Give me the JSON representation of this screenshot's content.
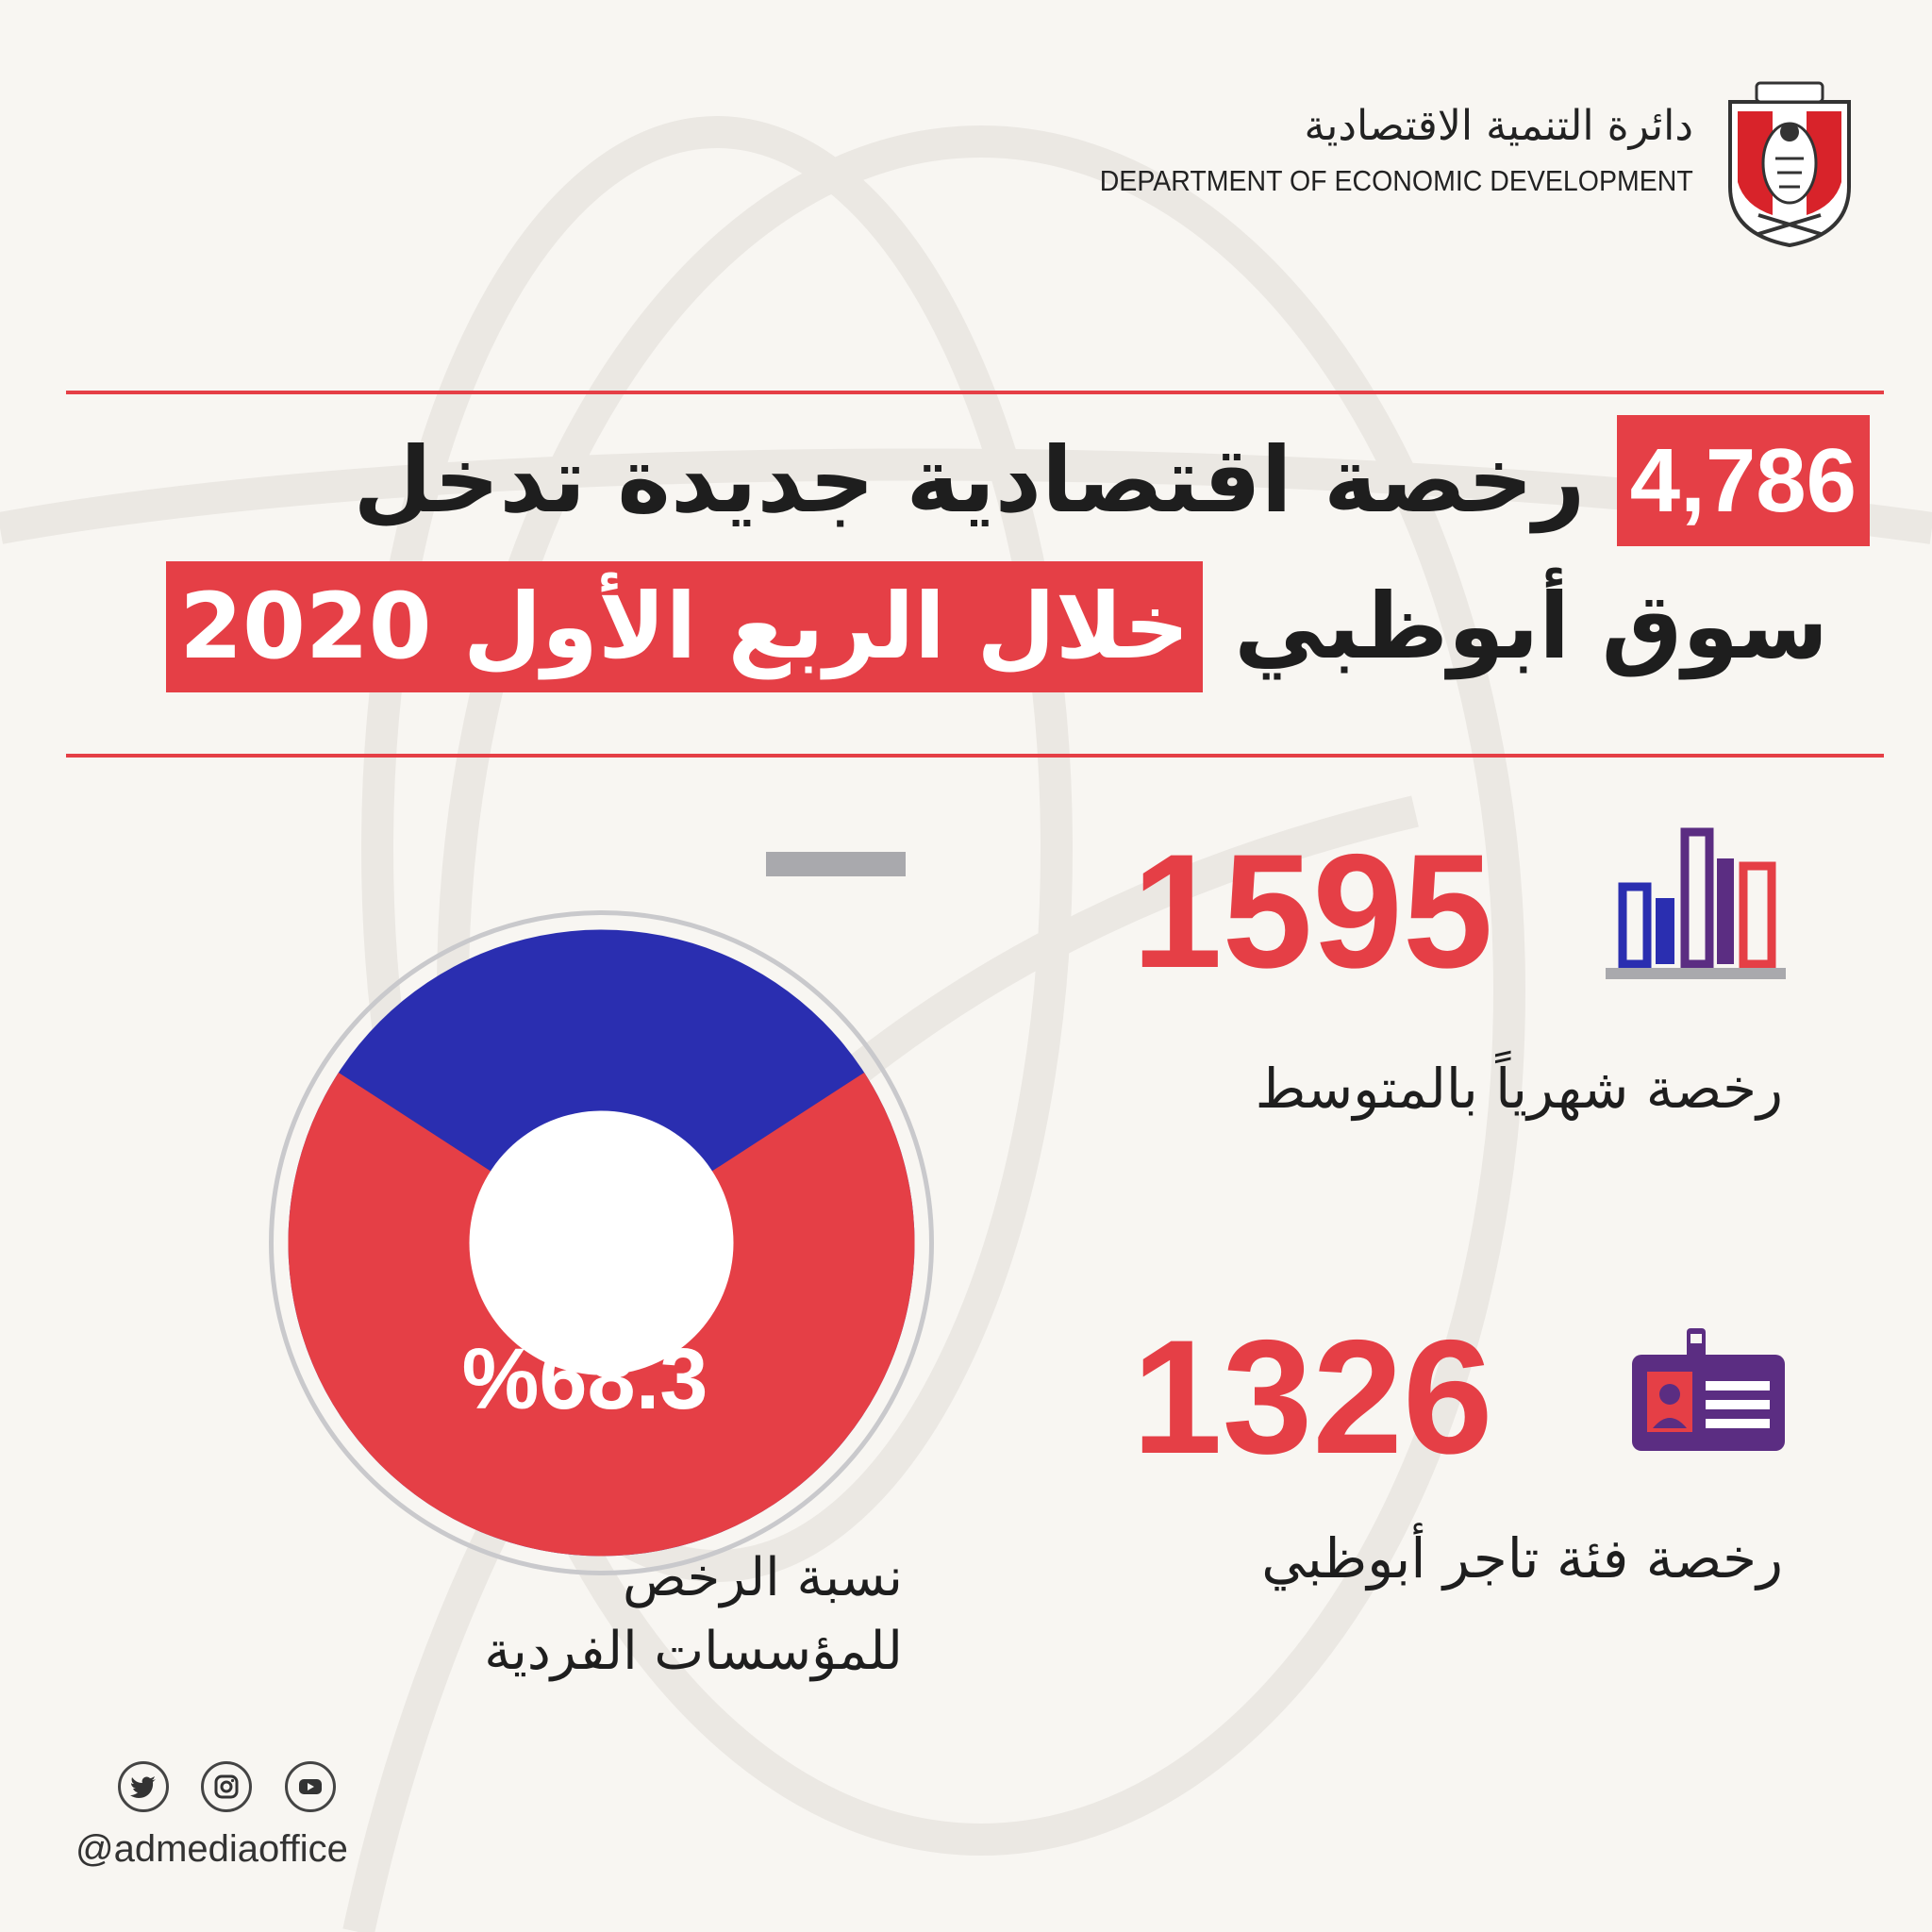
{
  "header": {
    "dept_name_ar": "دائرة التنمية الاقتصادية",
    "dept_name_en": "DEPARTMENT OF ECONOMIC DEVELOPMENT"
  },
  "headline": {
    "line1_number": "4,786",
    "line1_text": "رخصة اقتصادية جديدة تدخل",
    "line2_text": "سوق أبوظبي",
    "line2_highlight": "خلال الربع الأول 2020"
  },
  "stats": [
    {
      "value": "1595",
      "label": "رخصة شهرياً بالمتوسط",
      "icon": "bar-chart-icon"
    },
    {
      "value": "1326",
      "label": "رخصة فئة تاجر أبوظبي",
      "icon": "id-card-icon"
    }
  ],
  "donut": {
    "percent_label": "%68.3",
    "percent_value": 68.3,
    "label_line1": "نسبة الرخص",
    "label_line2": "للمؤسسات الفردية"
  },
  "colors": {
    "accent_red": "#e53f46",
    "blue": "#2a2eb0",
    "purple": "#5b2d82",
    "gray": "#a9a9ad"
  },
  "social": {
    "icons": [
      "twitter-icon",
      "instagram-icon",
      "youtube-icon"
    ],
    "handle": "@admediaoffice"
  }
}
